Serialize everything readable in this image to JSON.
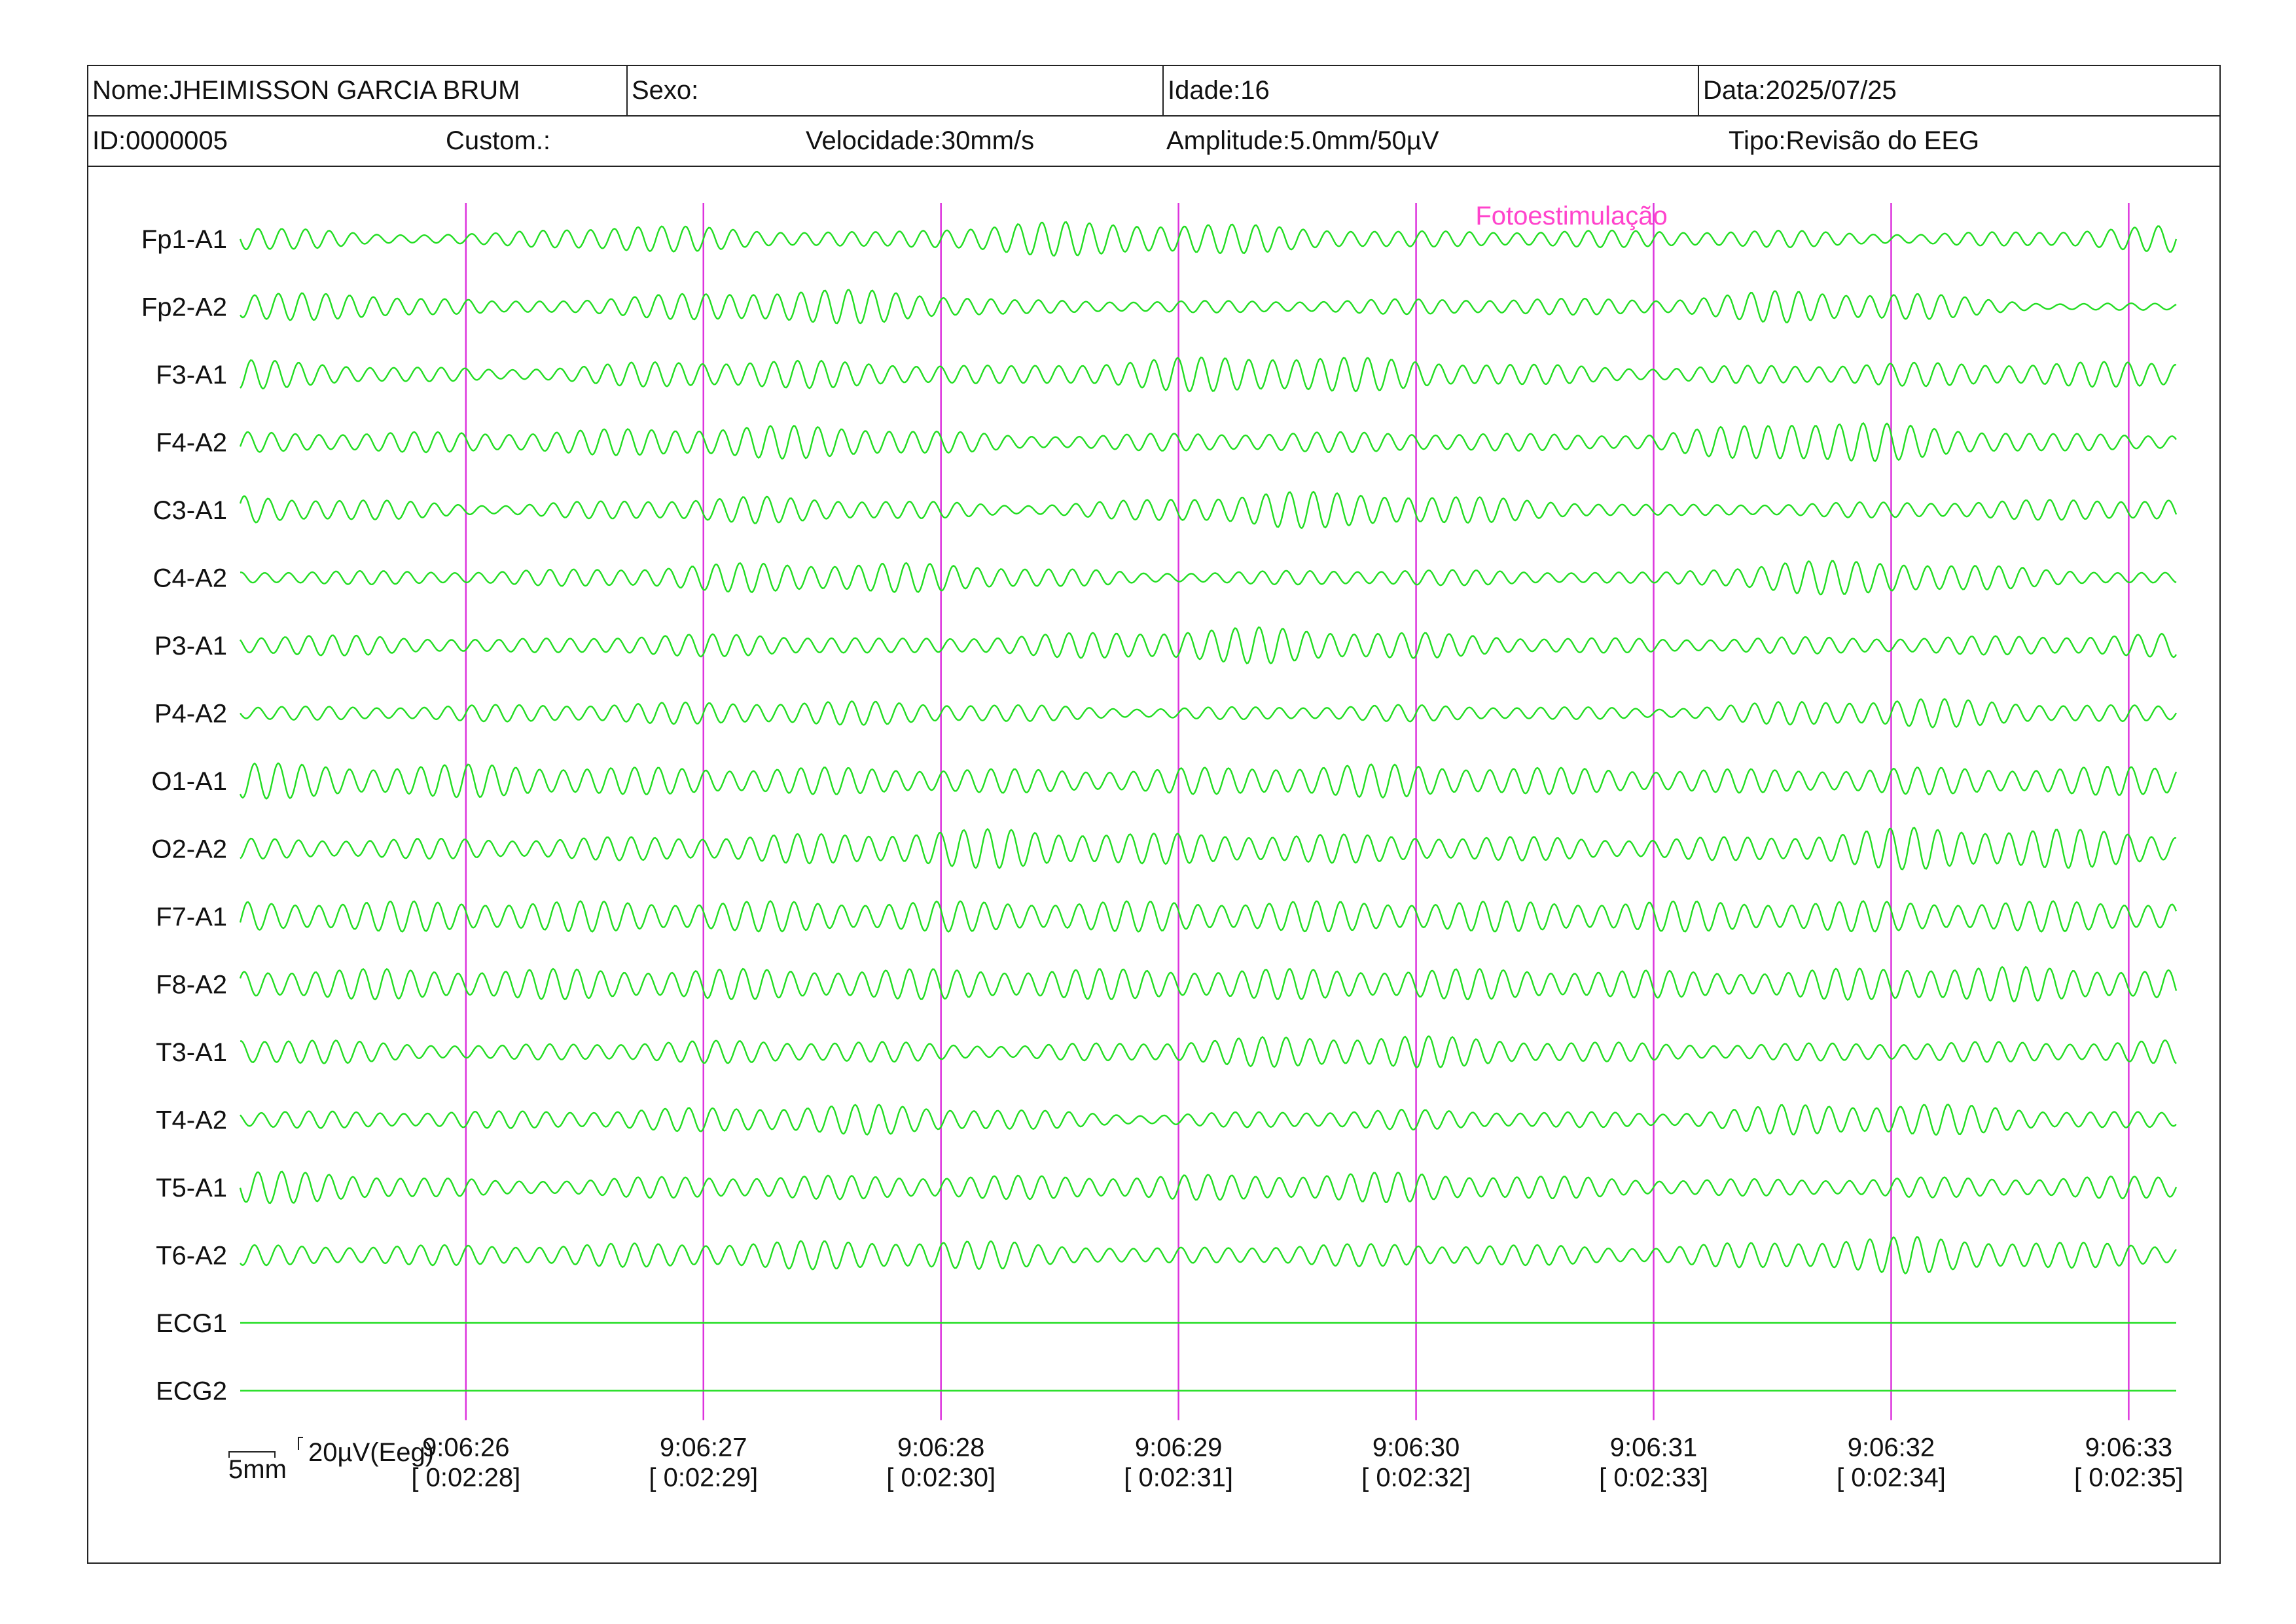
{
  "header": {
    "nome": "Nome:JHEIMISSON GARCIA BRUM",
    "sexo": "Sexo:",
    "idade": "Idade:16",
    "data": "Data:2025/07/25",
    "id": "ID:0000005",
    "custom": "Custom.:",
    "velocidade": "Velocidade:30mm/s",
    "amplitude": "Amplitude:5.0mm/50µV",
    "tipo": "Tipo:Revisão do EEG"
  },
  "colors": {
    "trace": "#22dd22",
    "marker": "#dd33dd",
    "annotation": "#ff44cc",
    "border": "#222222"
  },
  "scale_bar": {
    "time": "5mm",
    "amplitude": "20µV(Eeg)"
  },
  "chart_data": {
    "type": "line",
    "title": "",
    "annotations": [
      {
        "text": "Fotoestimulação",
        "x": "9:06:30.25"
      }
    ],
    "time_markers": [
      {
        "clock": "9:06:26",
        "elapsed": "[ 0:02:28]"
      },
      {
        "clock": "9:06:27",
        "elapsed": "[ 0:02:29]"
      },
      {
        "clock": "9:06:28",
        "elapsed": "[ 0:02:30]"
      },
      {
        "clock": "9:06:29",
        "elapsed": "[ 0:02:31]"
      },
      {
        "clock": "9:06:30",
        "elapsed": "[ 0:02:32]"
      },
      {
        "clock": "9:06:31",
        "elapsed": "[ 0:02:33]"
      },
      {
        "clock": "9:06:32",
        "elapsed": "[ 0:02:34]"
      },
      {
        "clock": "9:06:33",
        "elapsed": "[ 0:02:35]"
      }
    ],
    "x_range_seconds": [
      -0.95,
      7.2
    ],
    "frequency_hz": 10,
    "channels": [
      {
        "name": "Fp1-A1",
        "amp": [
          0.9,
          0.3,
          0.35,
          0.9,
          0.55,
          0.4,
          1.0,
          1.0,
          0.8,
          0.45,
          0.5,
          0.5,
          0.5,
          0.3,
          0.5,
          0.8
        ]
      },
      {
        "name": "Fp2-A2",
        "amp": [
          0.8,
          0.8,
          0.3,
          0.6,
          1.0,
          1.0,
          0.4,
          0.35,
          0.35,
          0.45,
          0.5,
          0.45,
          1.0,
          0.8,
          0.2,
          0.2
        ]
      },
      {
        "name": "F3-A1",
        "amp": [
          0.9,
          0.55,
          0.3,
          0.7,
          0.9,
          0.7,
          0.5,
          0.9,
          1.2,
          0.9,
          0.6,
          0.4,
          0.6,
          0.7,
          0.7,
          0.8
        ]
      },
      {
        "name": "F4-A2",
        "amp": [
          0.6,
          0.6,
          0.6,
          0.8,
          1.0,
          0.9,
          0.4,
          0.5,
          0.6,
          0.6,
          0.5,
          0.5,
          1.4,
          1.0,
          0.5,
          0.5
        ]
      },
      {
        "name": "C3-A1",
        "amp": [
          0.9,
          0.6,
          0.3,
          0.6,
          0.8,
          0.6,
          0.3,
          0.6,
          1.1,
          1.0,
          0.6,
          0.3,
          0.4,
          0.5,
          0.6,
          0.7
        ]
      },
      {
        "name": "C4-A2",
        "amp": [
          0.4,
          0.4,
          0.4,
          0.6,
          0.9,
          0.9,
          0.7,
          0.3,
          0.4,
          0.5,
          0.4,
          0.3,
          1.0,
          1.0,
          0.5,
          0.3
        ]
      },
      {
        "name": "P3-A1",
        "amp": [
          0.6,
          0.6,
          0.35,
          0.6,
          0.7,
          0.4,
          0.6,
          0.9,
          1.1,
          0.8,
          0.5,
          0.4,
          0.5,
          0.5,
          0.6,
          0.7
        ]
      },
      {
        "name": "P4-A2",
        "amp": [
          0.4,
          0.4,
          0.5,
          0.6,
          0.7,
          0.7,
          0.5,
          0.3,
          0.4,
          0.5,
          0.4,
          0.3,
          0.7,
          0.9,
          0.6,
          0.4
        ]
      },
      {
        "name": "O1-A1",
        "amp": [
          1.1,
          0.9,
          1.0,
          0.8,
          0.8,
          0.8,
          0.7,
          0.7,
          0.9,
          1.0,
          0.8,
          0.7,
          0.7,
          0.8,
          0.8,
          0.9
        ]
      },
      {
        "name": "O2-A2",
        "amp": [
          0.6,
          0.6,
          0.6,
          0.7,
          0.8,
          1.0,
          1.2,
          0.9,
          0.9,
          0.8,
          0.7,
          0.6,
          0.8,
          1.3,
          1.2,
          0.9
        ]
      },
      {
        "name": "F7-A1",
        "amp": [
          0.9,
          0.9,
          0.9,
          0.9,
          0.9,
          0.9,
          0.9,
          0.9,
          0.9,
          0.9,
          0.9,
          0.9,
          0.9,
          0.9,
          0.9,
          0.9
        ]
      },
      {
        "name": "F8-A2",
        "amp": [
          0.9,
          0.9,
          0.9,
          0.9,
          0.9,
          0.9,
          0.9,
          0.9,
          0.9,
          0.9,
          0.9,
          0.8,
          0.8,
          1.1,
          1.0,
          0.9
        ]
      },
      {
        "name": "T3-A1",
        "amp": [
          0.9,
          0.6,
          0.4,
          0.6,
          0.7,
          0.6,
          0.4,
          0.6,
          0.9,
          1.0,
          0.7,
          0.5,
          0.5,
          0.6,
          0.6,
          0.7
        ]
      },
      {
        "name": "T4-A2",
        "amp": [
          0.5,
          0.5,
          0.5,
          0.6,
          0.8,
          0.9,
          0.6,
          0.3,
          0.5,
          0.6,
          0.5,
          0.4,
          0.9,
          1.0,
          0.6,
          0.4
        ]
      },
      {
        "name": "T5-A1",
        "amp": [
          1.0,
          0.8,
          0.4,
          0.6,
          0.7,
          0.7,
          0.7,
          0.7,
          0.8,
          0.9,
          0.7,
          0.5,
          0.5,
          0.6,
          0.6,
          0.7
        ]
      },
      {
        "name": "T6-A2",
        "amp": [
          0.6,
          0.6,
          0.6,
          0.7,
          0.8,
          0.9,
          0.8,
          0.4,
          0.6,
          0.7,
          0.6,
          0.5,
          0.9,
          1.1,
          0.8,
          0.6
        ]
      },
      {
        "name": "ECG1",
        "amp": []
      },
      {
        "name": "ECG2",
        "amp": []
      }
    ]
  }
}
